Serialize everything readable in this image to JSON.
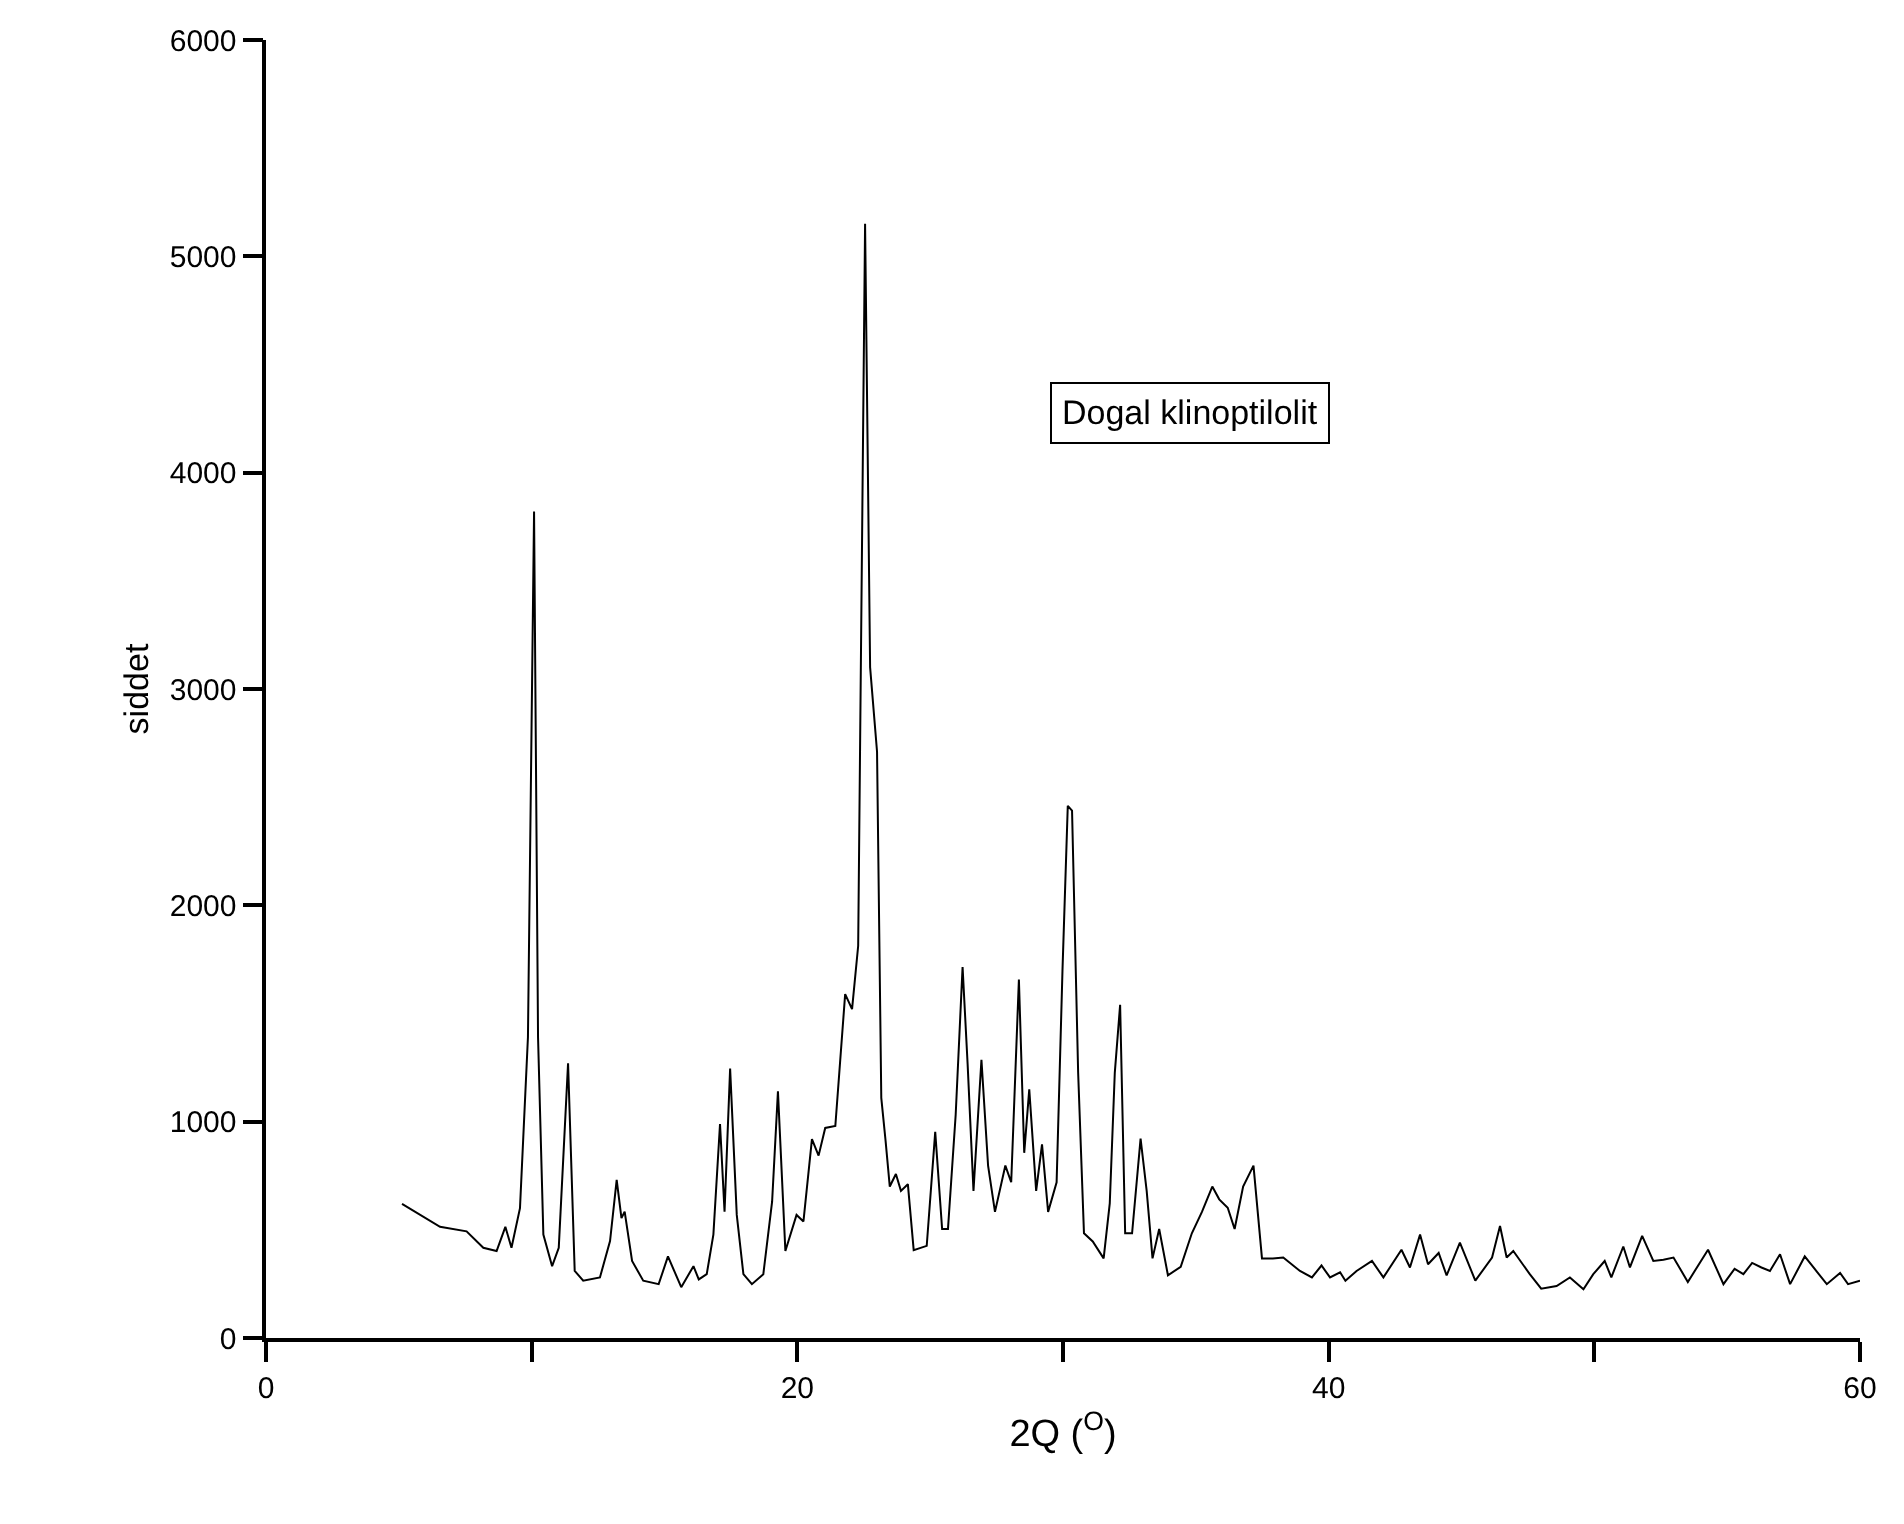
{
  "chart_data": {
    "type": "line",
    "xlabel": "2Q ($^{O}$)",
    "ylabel": "siddet",
    "annotations": [
      "Dogal klinoptilolit"
    ],
    "xlim": [
      0,
      60
    ],
    "ylim": [
      0,
      6000
    ],
    "xticks": [
      0,
      {
        "value": 10,
        "label": null
      },
      20,
      {
        "value": 30,
        "label": null
      },
      40,
      {
        "value": 50,
        "label": null
      },
      60
    ],
    "yticks": [
      0,
      1000,
      2000,
      3000,
      4000,
      5000,
      6000
    ],
    "marker": "none",
    "line_style": "solid",
    "series": [
      {
        "color": "#000000",
        "x": [
          5.12,
          6.55,
          7.55,
          8.18,
          8.68,
          9.01,
          9.24,
          9.56,
          9.86,
          10.09,
          10.24,
          10.44,
          10.77,
          11.02,
          11.37,
          11.62,
          11.94,
          12.57,
          12.95,
          13.2,
          13.38,
          13.5,
          13.78,
          14.2,
          14.78,
          15.13,
          15.63,
          16.09,
          16.29,
          16.59,
          16.84,
          17.09,
          17.26,
          17.47,
          17.72,
          17.97,
          18.29,
          18.72,
          19.05,
          19.27,
          19.55,
          19.97,
          20.23,
          20.55,
          20.8,
          21.05,
          21.43,
          21.8,
          22.06,
          22.29,
          22.55,
          22.74,
          23.0,
          23.16,
          23.32,
          23.48,
          23.71,
          23.9,
          24.16,
          24.38,
          24.87,
          25.19,
          25.45,
          25.67,
          25.96,
          26.22,
          26.41,
          26.63,
          26.93,
          27.18,
          27.44,
          27.83,
          28.05,
          28.34,
          28.54,
          28.73,
          28.99,
          29.21,
          29.44,
          29.76,
          29.98,
          30.18,
          30.34,
          30.57,
          30.79,
          31.12,
          31.53,
          31.76,
          31.95,
          32.15,
          32.34,
          32.6,
          32.92,
          33.15,
          33.37,
          33.62,
          33.95,
          34.43,
          34.85,
          35.23,
          35.62,
          35.88,
          36.2,
          36.46,
          36.78,
          37.17,
          37.49,
          37.9,
          38.29,
          38.92,
          39.37,
          39.73,
          40.05,
          40.43,
          40.63,
          41.05,
          41.63,
          42.06,
          42.74,
          43.06,
          43.44,
          43.74,
          44.14,
          44.44,
          44.94,
          45.52,
          46.15,
          46.45,
          46.7,
          46.95,
          47.57,
          48.0,
          48.58,
          49.08,
          49.59,
          49.96,
          50.39,
          50.64,
          51.09,
          51.34,
          51.8,
          52.22,
          52.6,
          52.98,
          53.52,
          54.28,
          54.86,
          55.28,
          55.61,
          55.94,
          56.29,
          56.61,
          56.99,
          57.37,
          57.92,
          58.25,
          58.75,
          59.25,
          59.55,
          60.0
        ],
        "values": [
          620,
          514,
          493,
          417,
          402,
          514,
          417,
          600,
          1390,
          3820,
          1390,
          478,
          332,
          417,
          1270,
          310,
          265,
          280,
          448,
          731,
          554,
          584,
          356,
          265,
          249,
          377,
          235,
          332,
          271,
          295,
          478,
          989,
          584,
          1245,
          569,
          295,
          249,
          295,
          630,
          1140,
          402,
          569,
          539,
          919,
          843,
          971,
          980,
          1590,
          1520,
          1813,
          5150,
          3100,
          2710,
          1110,
          914,
          700,
          758,
          680,
          711,
          406,
          426,
          953,
          504,
          504,
          1032,
          1715,
          1266,
          680,
          1286,
          797,
          583,
          797,
          720,
          1657,
          856,
          1149,
          680,
          895,
          583,
          720,
          1696,
          2460,
          2438,
          1227,
          484,
          446,
          368,
          622,
          1227,
          1540,
          484,
          484,
          922,
          680,
          368,
          504,
          290,
          329,
          484,
          583,
          700,
          641,
          602,
          504,
          700,
          797,
          368,
          368,
          372,
          310,
          280,
          335,
          280,
          304,
          265,
          310,
          356,
          280,
          408,
          326,
          478,
          341,
          393,
          289,
          441,
          265,
          372,
          518,
          372,
          402,
          295,
          228,
          240,
          280,
          225,
          295,
          356,
          280,
          423,
          326,
          472,
          356,
          362,
          372,
          259,
          408,
          249,
          320,
          295,
          347,
          326,
          310,
          387,
          249,
          377,
          326,
          249,
          301,
          249,
          265
        ]
      }
    ]
  }
}
